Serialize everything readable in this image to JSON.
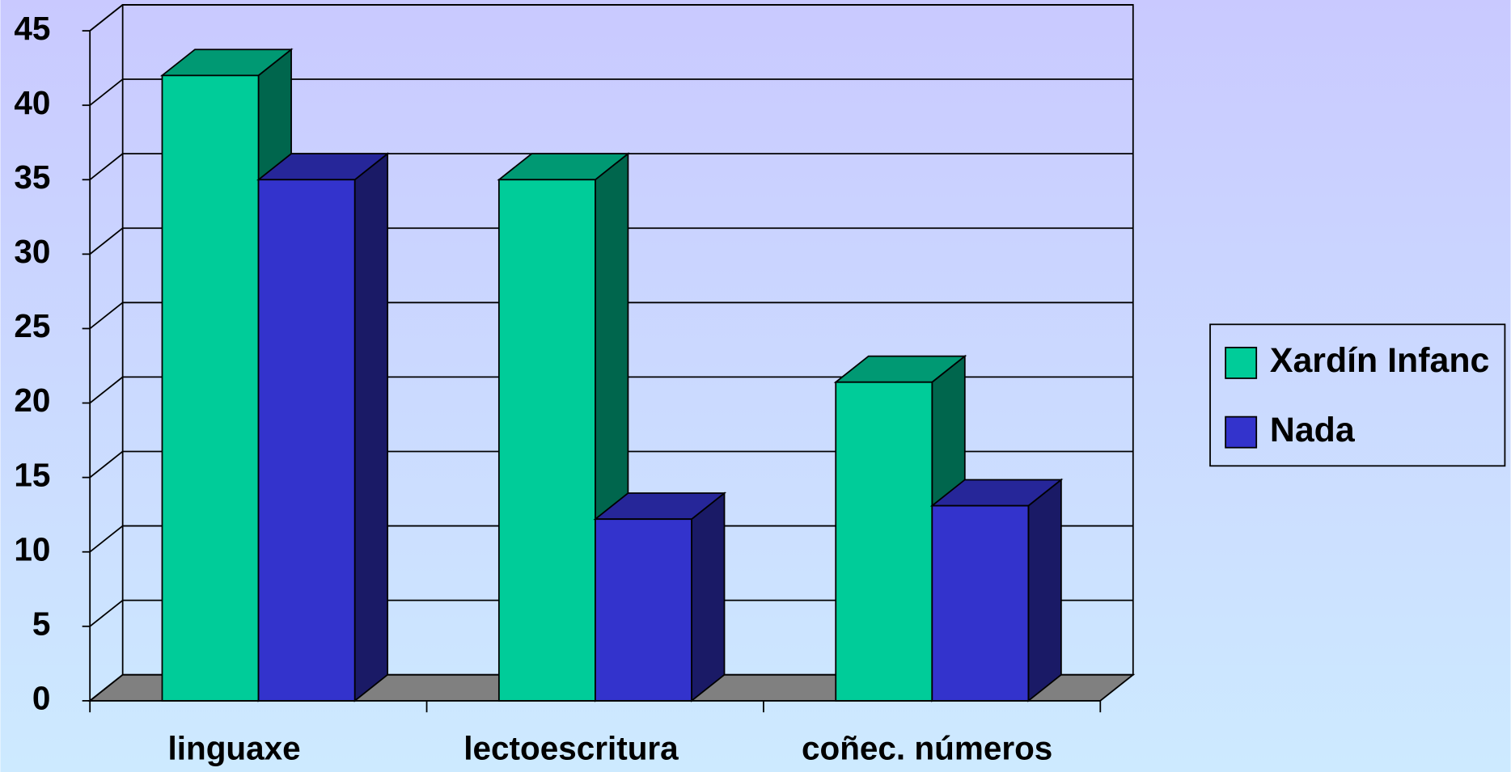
{
  "chart_data": {
    "type": "bar3d",
    "categories": [
      "linguaxe",
      "lectoescritura",
      "coñec. números"
    ],
    "series": [
      {
        "name": "Xardín Infanc",
        "color": "#00cc99",
        "values": [
          42,
          35,
          21.4
        ]
      },
      {
        "name": "Nada",
        "color": "#3333cc",
        "values": [
          35,
          12.2,
          13.1
        ]
      }
    ],
    "ylim": [
      0,
      45
    ],
    "yticks": [
      0,
      5,
      10,
      15,
      20,
      25,
      30,
      35,
      40,
      45
    ],
    "grid": true,
    "legend": "right"
  }
}
